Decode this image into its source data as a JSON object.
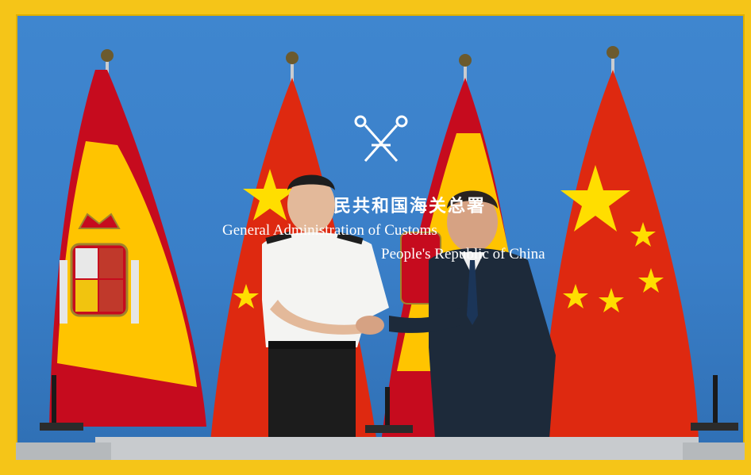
{
  "wall_text": {
    "chinese": "民共和国海关总署",
    "english_line1": "General Administration of Customs",
    "english_line2": "People's Republic of China"
  },
  "colors": {
    "frame": "#f5c518",
    "backdrop": "#3a7fc8",
    "china_red": "#de2910",
    "china_yellow": "#ffde00",
    "spain_red": "#c60b1e",
    "spain_yellow": "#ffc400"
  },
  "scene": {
    "flags": [
      "spain-flag",
      "china-flag",
      "spain-flag",
      "china-flag"
    ],
    "people": [
      "customs-official",
      "suited-official"
    ]
  }
}
